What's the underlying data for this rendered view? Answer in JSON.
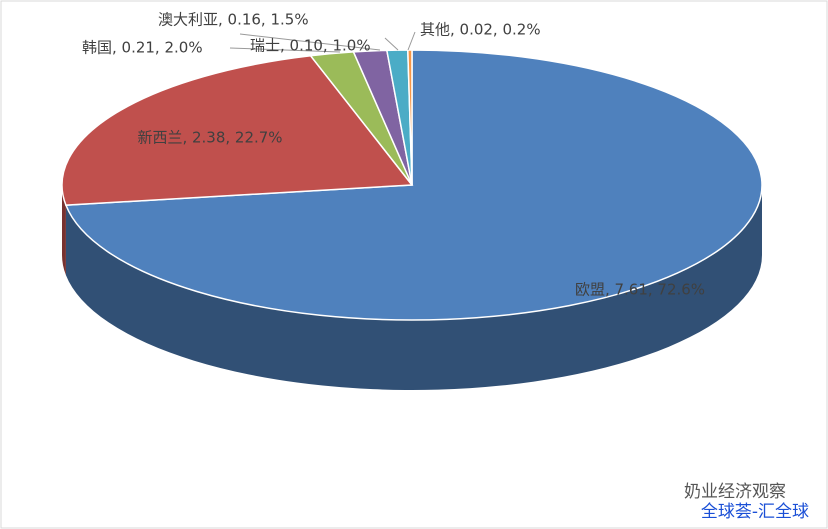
{
  "chart_data": {
    "type": "pie",
    "values": [
      7.61,
      2.38,
      0.21,
      0.16,
      0.1,
      0.02
    ],
    "value_labels": [
      "欧盟, 7.61, 72.6%",
      "新西兰, 2.38, 22.7%",
      "韩国, 0.21, 2.0%",
      "澳大利亚, 0.16, 1.5%",
      "瑞士, 0.10, 1.0%",
      "其他, 0.02, 0.2%"
    ],
    "colors": [
      "#4f81bd",
      "#c0504d",
      "#9bbb59",
      "#8064a2",
      "#4bacc6",
      "#f79646"
    ]
  },
  "watermark": {
    "account": "奶业经济观察",
    "source": "全球荟-汇全球"
  }
}
